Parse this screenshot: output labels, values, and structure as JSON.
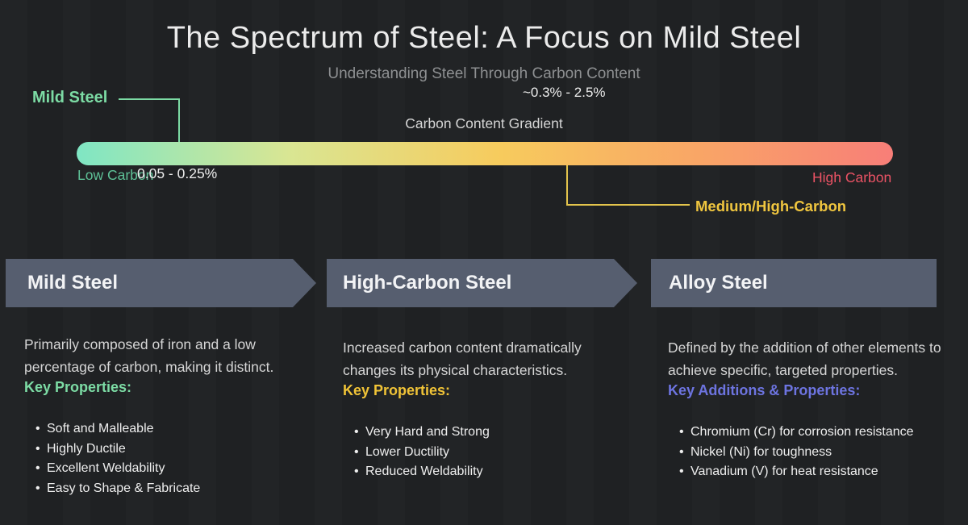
{
  "title": "The Spectrum of Steel: A Focus on Mild Steel",
  "subtitle": "Understanding Steel Through Carbon Content",
  "gradient_section": {
    "heading": "Carbon Content Gradient",
    "mild_steel_callout": "Mild Steel",
    "low_label": "Low Carbon",
    "low_range": "0.05 - 0.25%",
    "high_label": "High Carbon",
    "high_range": "~0.3% - 2.5%",
    "medium_callout": "Medium/High-Carbon"
  },
  "columns": [
    {
      "header": "Mild Steel",
      "description": "Primarily composed of iron and a low percentage of carbon, making it distinct.",
      "key_label": "Key Properties:",
      "key_color": "#7cdba4",
      "bullets": [
        "Soft and Malleable",
        "Highly Ductile",
        "Excellent Weldability",
        "Easy to Shape & Fabricate"
      ]
    },
    {
      "header": "High-Carbon Steel",
      "description": "Increased carbon content dramatically changes its physical characteristics.",
      "key_label": "Key Properties:",
      "key_color": "#f0c337",
      "bullets": [
        "Very Hard and Strong",
        "Lower Ductility",
        "Reduced Weldability"
      ]
    },
    {
      "header": "Alloy Steel",
      "description": "Defined by the addition of other elements to achieve specific, targeted properties.",
      "key_label": "Key Additions & Properties:",
      "key_color": "#6d74e0",
      "bullets": [
        "Chromium (Cr) for corrosion resistance",
        "Nickel (Ni) for toughness",
        "Vanadium (V) for heat resistance"
      ]
    }
  ],
  "colors": {
    "background": "#1f2123",
    "title_text": "#ebebeb",
    "subtitle_text": "#8e9092",
    "mild_green": "#7cdba4",
    "low_carbon_green": "#5ec197",
    "high_carbon_red": "#ec5365",
    "medium_yellow": "#f0c63f",
    "alloy_periwinkle": "#6d74e0",
    "banner_slate": "#565e6f",
    "gradient_stops": [
      "#7fe6c4",
      "#d9e693",
      "#f7cb5d",
      "#f9a666",
      "#f87e78"
    ]
  }
}
